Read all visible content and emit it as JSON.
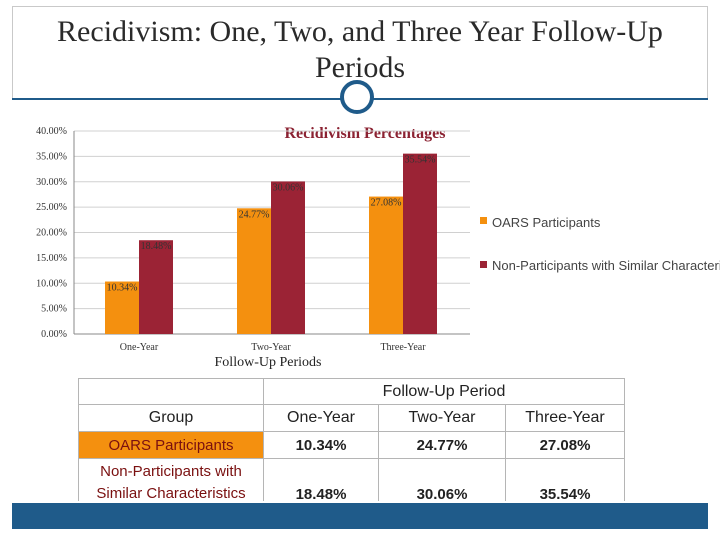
{
  "slide": {
    "title": "Recidivism: One, Two, and Three Year Follow-Up Periods"
  },
  "chart_data": {
    "type": "bar",
    "title": "Recidivism Percentages",
    "xlabel": "Follow-Up Periods",
    "ylabel": "",
    "categories": [
      "One-Year",
      "Two-Year",
      "Three-Year"
    ],
    "ylim": [
      0,
      40
    ],
    "yticks": [
      "0.00%",
      "5.00%",
      "10.00%",
      "15.00%",
      "20.00%",
      "25.00%",
      "30.00%",
      "35.00%",
      "40.00%"
    ],
    "series": [
      {
        "name": "OARS Participants",
        "color": "#f4900f",
        "values": [
          10.34,
          24.77,
          27.08
        ],
        "labels": [
          "10.34%",
          "24.77%",
          "27.08%"
        ]
      },
      {
        "name": "Non-Participants with Similar Characteristics",
        "color": "#9b2335",
        "values": [
          18.48,
          30.06,
          35.54
        ],
        "labels": [
          "18.48%",
          "30.06%",
          "35.54%"
        ]
      }
    ],
    "legend": [
      "OARS Participants",
      "Non-Participants with Similar Characteristics"
    ],
    "legend_position": "right",
    "grid": true
  },
  "table": {
    "super_header": "Follow-Up Period",
    "columns": [
      "Group",
      "One-Year",
      "Two-Year",
      "Three-Year"
    ],
    "rows": [
      {
        "group": "OARS Participants",
        "one": "10.34%",
        "two": "24.77%",
        "three": "27.08%"
      },
      {
        "group": "Non-Participants with Similar Characteristics",
        "one": "18.48%",
        "two": "30.06%",
        "three": "35.54%"
      }
    ]
  },
  "colors": {
    "accent": "#1f5b8a",
    "orange": "#f4900f",
    "maroon": "#9b2335"
  }
}
